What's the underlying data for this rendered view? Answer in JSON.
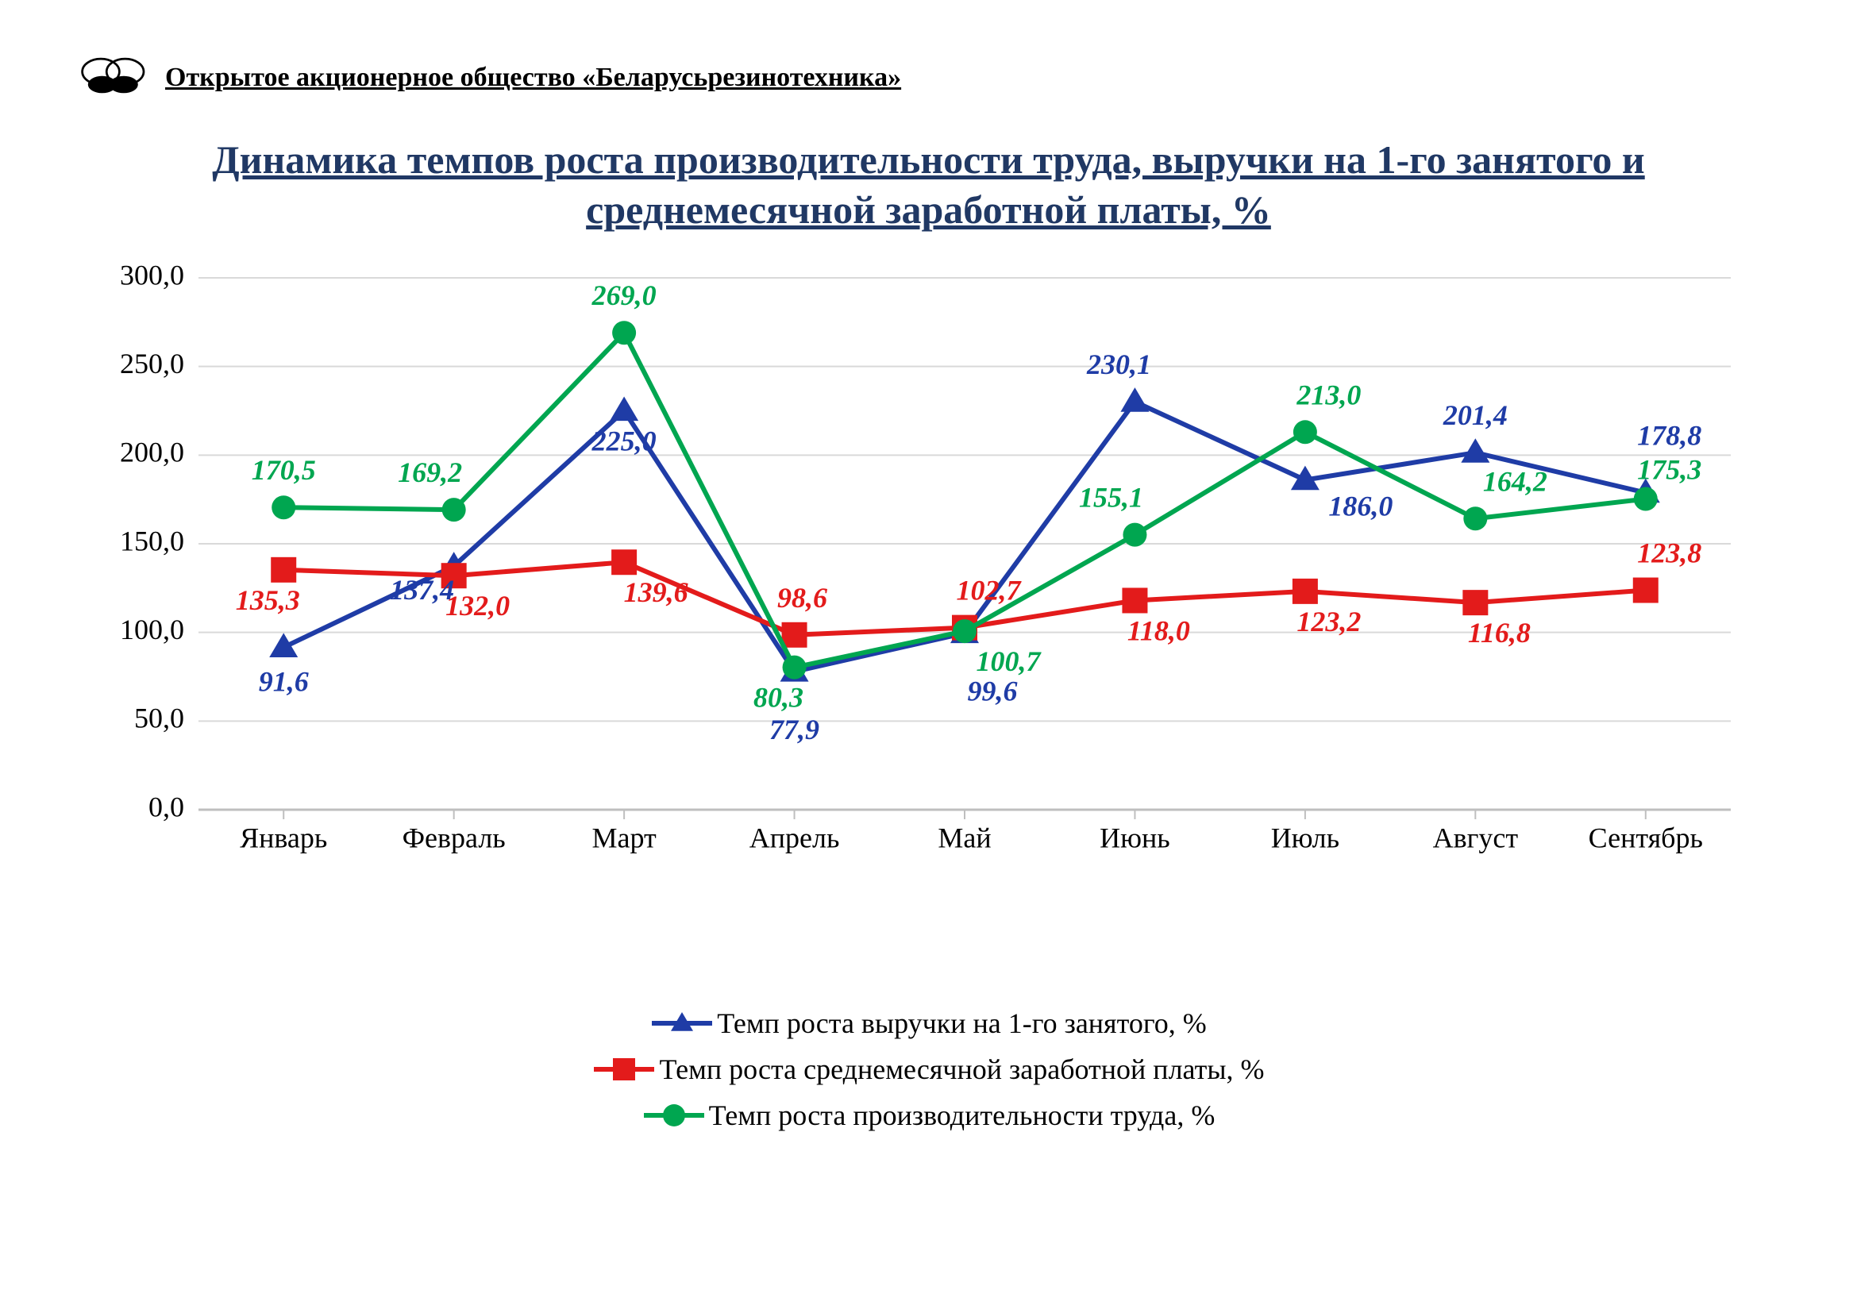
{
  "header": {
    "company_name": "Открытое акционерное общество «Беларусьрезинотехника»"
  },
  "chart": {
    "type": "line",
    "title": "Динамика темпов роста производительности труда, выручки на 1-го занятого и среднемесячной заработной платы, %",
    "title_color": "#203864",
    "title_fontsize": 50,
    "background_color": "#ffffff",
    "axis_color": "#bfbfbf",
    "grid_color": "#d9d9d9",
    "categories": [
      "Январь",
      "Февраль",
      "Март",
      "Апрель",
      "Май",
      "Июнь",
      "Июль",
      "Август",
      "Сентябрь"
    ],
    "ylim": [
      0,
      300
    ],
    "ytick_step": 50,
    "yticks": [
      "0,0",
      "50,0",
      "100,0",
      "150,0",
      "200,0",
      "250,0",
      "300,0"
    ],
    "xtick_fontsize": 36,
    "ytick_fontsize": 36,
    "datalabel_fontsize": 36,
    "series": [
      {
        "key": "revenue_per_employee",
        "label": "Темп роста выручки на 1-го занятого, %",
        "color": "#1f3ca6",
        "marker": "triangle",
        "marker_size": 18,
        "line_width": 6,
        "values": [
          91.6,
          137.4,
          225.0,
          77.9,
          99.6,
          230.1,
          186.0,
          201.4,
          178.8
        ],
        "value_labels": [
          "91,6",
          "137,4",
          "225,0",
          "77,9",
          "99,6",
          "230,1",
          "186,0",
          "201,4",
          "178,8"
        ],
        "label_offsets": [
          {
            "dx": 0,
            "dy": 55
          },
          {
            "dx": -40,
            "dy": 42
          },
          {
            "dx": 0,
            "dy": 50
          },
          {
            "dx": 0,
            "dy": 85
          },
          {
            "dx": 35,
            "dy": 85
          },
          {
            "dx": -20,
            "dy": -35
          },
          {
            "dx": 70,
            "dy": 45
          },
          {
            "dx": 0,
            "dy": -35
          },
          {
            "dx": 30,
            "dy": -60
          }
        ]
      },
      {
        "key": "avg_monthly_wage",
        "label": "Темп роста среднемесячной заработной платы, %",
        "color": "#e31b1b",
        "marker": "square",
        "marker_size": 16,
        "line_width": 6,
        "values": [
          135.3,
          132.0,
          139.6,
          98.6,
          102.7,
          118.0,
          123.2,
          116.8,
          123.8
        ],
        "value_labels": [
          "135,3",
          "132,0",
          "139,6",
          "98,6",
          "102,7",
          "118,0",
          "123,2",
          "116,8",
          "123,8"
        ],
        "label_offsets": [
          {
            "dx": -20,
            "dy": 50
          },
          {
            "dx": 30,
            "dy": 50
          },
          {
            "dx": 40,
            "dy": 50
          },
          {
            "dx": 10,
            "dy": -35
          },
          {
            "dx": 30,
            "dy": -35
          },
          {
            "dx": 30,
            "dy": 50
          },
          {
            "dx": 30,
            "dy": 50
          },
          {
            "dx": 30,
            "dy": 50
          },
          {
            "dx": 30,
            "dy": -35
          }
        ]
      },
      {
        "key": "labor_productivity",
        "label": "Темп роста производительности труда, %",
        "color": "#00a650",
        "marker": "circle",
        "marker_size": 15,
        "line_width": 6,
        "values": [
          170.5,
          169.2,
          269.0,
          80.3,
          100.7,
          155.1,
          213.0,
          164.2,
          175.3
        ],
        "value_labels": [
          "170,5",
          "169,2",
          "269,0",
          "80,3",
          "100,7",
          "155,1",
          "213,0",
          "164,2",
          "175,3"
        ],
        "label_offsets": [
          {
            "dx": 0,
            "dy": -35
          },
          {
            "dx": -30,
            "dy": -35
          },
          {
            "dx": 0,
            "dy": -35
          },
          {
            "dx": -20,
            "dy": 50
          },
          {
            "dx": 55,
            "dy": 50
          },
          {
            "dx": -30,
            "dy": -35
          },
          {
            "dx": 30,
            "dy": -35
          },
          {
            "dx": 50,
            "dy": -35
          },
          {
            "dx": 30,
            "dy": -25
          }
        ]
      }
    ],
    "legend_fontsize": 36
  }
}
